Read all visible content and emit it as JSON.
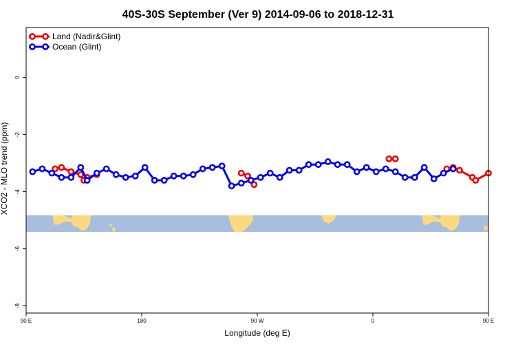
{
  "chart_data": {
    "type": "line",
    "title": "40S-30S September (Ver 9)   2014-09-06 to 2018-12-31",
    "xlabel": "Longitude (deg E)",
    "ylabel": "XCO2 - MLO trend (ppm)",
    "xlim": [
      90,
      450
    ],
    "ylim": [
      -8.25,
      1.75
    ],
    "x_ticks": [
      {
        "value": 90,
        "label": "90 E"
      },
      {
        "value": 180,
        "label": "180"
      },
      {
        "value": 270,
        "label": "90 W"
      },
      {
        "value": 360,
        "label": "0"
      },
      {
        "value": 450,
        "label": "90 E"
      },
      {
        "value": 540,
        "label": "180"
      }
    ],
    "y_ticks": [
      {
        "value": 0,
        "label": "0"
      },
      {
        "value": -2,
        "label": "-2"
      },
      {
        "value": -4,
        "label": "-4"
      },
      {
        "value": -6,
        "label": "-6"
      },
      {
        "value": -8,
        "label": "-8"
      }
    ],
    "legend_position": "top-left",
    "map_band": {
      "y_top": -5.0,
      "y_bottom": -5.55,
      "ocean_color": "#a8bedf",
      "land_color": "#fcd97f"
    },
    "series": [
      {
        "name": "Land (Nadir&Glint)",
        "color": "#ee0000",
        "points": [
          [
            112.5,
            -3.2
          ],
          [
            117.5,
            -3.15
          ],
          [
            125,
            -3.3
          ],
          [
            132.5,
            -3.4
          ],
          [
            135,
            -3.6
          ],
          [
            137.5,
            -3.5
          ],
          [
            145,
            -3.4
          ],
          [
            257.5,
            -3.35
          ],
          [
            262.5,
            -3.45
          ],
          [
            267.5,
            -3.75
          ],
          [
            372.5,
            -2.85
          ],
          [
            377.5,
            -2.85
          ],
          [
            417.5,
            -3.2
          ],
          [
            422.5,
            -3.15
          ],
          [
            427.5,
            -3.25
          ],
          [
            437.5,
            -3.5
          ],
          [
            440,
            -3.6
          ],
          [
            450,
            -3.35
          ]
        ]
      },
      {
        "name": "Ocean (Glint)",
        "color": "#0000ee",
        "points": [
          [
            95,
            -3.3
          ],
          [
            102.5,
            -3.2
          ],
          [
            110,
            -3.35
          ],
          [
            117.5,
            -3.5
          ],
          [
            125,
            -3.5
          ],
          [
            132.5,
            -3.15
          ],
          [
            137.5,
            -3.6
          ],
          [
            145,
            -3.35
          ],
          [
            152.5,
            -3.2
          ],
          [
            160,
            -3.4
          ],
          [
            167.5,
            -3.5
          ],
          [
            175,
            -3.45
          ],
          [
            182.5,
            -3.15
          ],
          [
            190,
            -3.6
          ],
          [
            197.5,
            -3.6
          ],
          [
            205,
            -3.45
          ],
          [
            212.5,
            -3.45
          ],
          [
            220,
            -3.4
          ],
          [
            227.5,
            -3.2
          ],
          [
            235,
            -3.15
          ],
          [
            242.5,
            -3.1
          ],
          [
            250,
            -3.8
          ],
          [
            257.5,
            -3.7
          ],
          [
            265,
            -3.6
          ],
          [
            272.5,
            -3.5
          ],
          [
            280,
            -3.35
          ],
          [
            287.5,
            -3.5
          ],
          [
            295,
            -3.25
          ],
          [
            302.5,
            -3.25
          ],
          [
            310,
            -3.05
          ],
          [
            317.5,
            -3.05
          ],
          [
            325,
            -2.95
          ],
          [
            332.5,
            -3.05
          ],
          [
            340,
            -3.05
          ],
          [
            347.5,
            -3.3
          ],
          [
            355,
            -3.15
          ],
          [
            362.5,
            -3.3
          ],
          [
            370,
            -3.2
          ],
          [
            377.5,
            -3.3
          ],
          [
            385,
            -3.5
          ],
          [
            392.5,
            -3.5
          ],
          [
            400,
            -3.15
          ],
          [
            407.5,
            -3.55
          ],
          [
            415,
            -3.35
          ],
          [
            422.5,
            -3.2
          ]
        ]
      }
    ]
  }
}
